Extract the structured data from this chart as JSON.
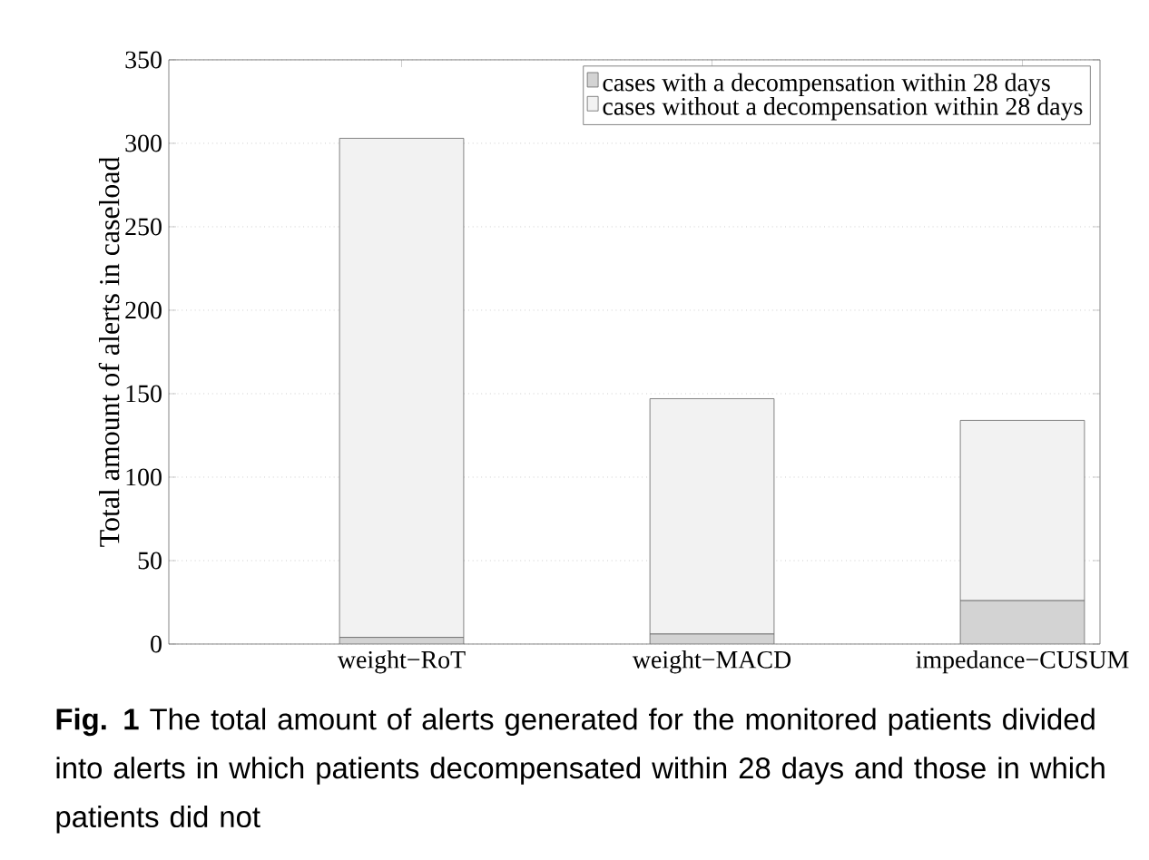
{
  "chart_data": {
    "type": "bar",
    "stacked": true,
    "ylabel": "Total amount of alerts in caseload",
    "categories": [
      "weight−RoT",
      "weight−MACD",
      "impedance−CUSUM"
    ],
    "series": [
      {
        "name": "cases with a decompensation within 28 days",
        "color": "#d3d3d3",
        "values": [
          4,
          6,
          26
        ]
      },
      {
        "name": "cases without a decompensation within 28 days",
        "color": "#f2f2f2",
        "values": [
          299,
          141,
          108
        ]
      }
    ],
    "ylim": [
      0,
      350
    ],
    "yticks": [
      0,
      50,
      100,
      150,
      200,
      250,
      300,
      350
    ],
    "grid": "y",
    "legend": "top right",
    "annotations": [
      "**Fig. 1** The total amount of alerts generated for the monitored patients divided into alerts in which patients decompensated within 28 days and those in which patients did not"
    ]
  }
}
